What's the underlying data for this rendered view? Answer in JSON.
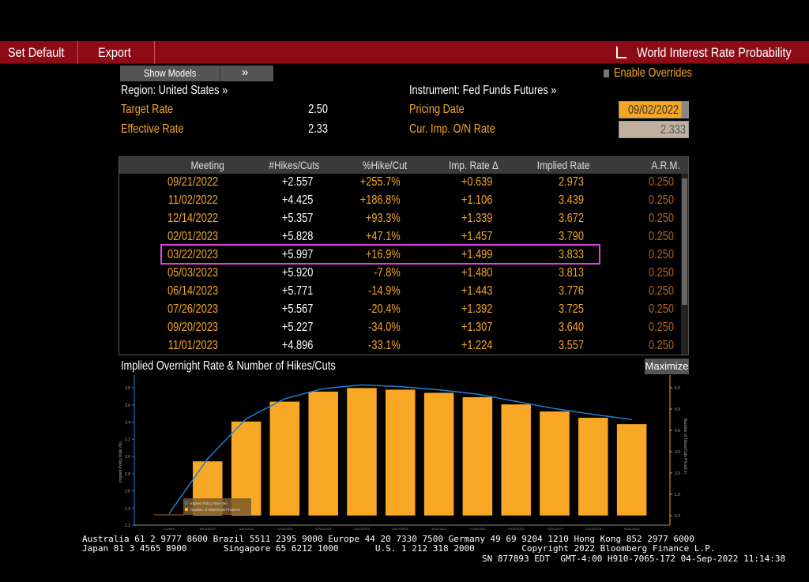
{
  "toolbar": {
    "set_default": "Set Default",
    "export": "Export",
    "title": "World Interest Rate Probability",
    "title_icon": "external-link-icon"
  },
  "controls": {
    "show_models": "Show Models",
    "expand": "»",
    "enable_overrides": "Enable Overrides",
    "region": "Region: United States »",
    "instrument": "Instrument: Fed Funds Futures »",
    "target_rate_label": "Target Rate",
    "target_rate": "2.50",
    "effective_rate_label": "Effective Rate",
    "effective_rate": "2.33",
    "pricing_date_label": "Pricing Date",
    "pricing_date": "09/02/2022",
    "cur_imp_label": "Cur. Imp. O/N Rate",
    "cur_imp": "2.333"
  },
  "table": {
    "headers": [
      "Meeting",
      "#Hikes/Cuts",
      "%Hike/Cut",
      "Imp. Rate Δ",
      "Implied Rate",
      "A.R.M."
    ],
    "rows": [
      [
        "09/21/2022",
        "+2.557",
        "+255.7%",
        "+0.639",
        "2.973",
        "0.250"
      ],
      [
        "11/02/2022",
        "+4.425",
        "+186.8%",
        "+1.106",
        "3.439",
        "0.250"
      ],
      [
        "12/14/2022",
        "+5.357",
        "+93.3%",
        "+1.339",
        "3.672",
        "0.250"
      ],
      [
        "02/01/2023",
        "+5.828",
        "+47.1%",
        "+1.457",
        "3.790",
        "0.250"
      ],
      [
        "03/22/2023",
        "+5.997",
        "+16.9%",
        "+1.499",
        "3.833",
        "0.250"
      ],
      [
        "05/03/2023",
        "+5.920",
        "-7.8%",
        "+1.480",
        "3.813",
        "0.250"
      ],
      [
        "06/14/2023",
        "+5.771",
        "-14.9%",
        "+1.443",
        "3.776",
        "0.250"
      ],
      [
        "07/26/2023",
        "+5.567",
        "-20.4%",
        "+1.392",
        "3.725",
        "0.250"
      ],
      [
        "09/20/2023",
        "+5.227",
        "-34.0%",
        "+1.307",
        "3.640",
        "0.250"
      ],
      [
        "11/01/2023",
        "+4.896",
        "-33.1%",
        "+1.224",
        "3.557",
        "0.250"
      ]
    ],
    "highlight_row": 4,
    "highlight_color": "#e040e0"
  },
  "chart": {
    "title": "Implied Overnight Rate & Number of Hikes/Cuts",
    "maximize": "Maximize"
  },
  "chart_data": {
    "type": "bar+line",
    "categories": [
      "Current",
      "09/21/2022",
      "11/02/2022",
      "12/14/2022",
      "02/01/2023",
      "03/22/2023",
      "05/03/2023",
      "06/14/2023",
      "07/26/2023",
      "09/20/2023",
      "11/01/2023",
      "12/13/2023",
      "01/31/2024"
    ],
    "series": [
      {
        "name": "Implied Policy Rate (%)",
        "type": "line",
        "axis": "left",
        "color": "#1e7fd6",
        "values": [
          2.333,
          2.973,
          3.439,
          3.672,
          3.79,
          3.833,
          3.813,
          3.776,
          3.725,
          3.64,
          3.557,
          3.49,
          3.43
        ]
      },
      {
        "name": "Number of Hikes/Cuts Priced In",
        "type": "bar",
        "axis": "right",
        "color": "#f9a825",
        "values": [
          0,
          2.557,
          4.425,
          5.357,
          5.828,
          5.997,
          5.92,
          5.771,
          5.567,
          5.227,
          4.896,
          4.6,
          4.3
        ]
      }
    ],
    "ylabel": "Implied Policy Rate (%)",
    "y2label": "Number of Hikes/Cuts Priced In",
    "ylim": [
      2.2,
      3.8
    ],
    "yticks": [
      "2.2",
      "2.4",
      "2.6",
      "2.8",
      "3.0",
      "3.2",
      "3.4",
      "3.6",
      "3.8"
    ],
    "y2lim": [
      0,
      6
    ],
    "y2ticks": [
      "0.0",
      "1.0",
      "2.0",
      "3.0",
      "4.0",
      "5.0",
      "6.0"
    ],
    "legend": "bottom-left"
  },
  "footer": {
    "line1": "Australia 61 2 9777 8600 Brazil 5511 2395 9000 Europe 44 20 7330 7500 Germany 49 69 9204 1210 Hong Kong 852 2977 6000",
    "line2": "Japan 81 3 4565 8900       Singapore 65 6212 1000       U.S. 1 212 318 2000         Copyright 2022 Bloomberg Finance L.P.",
    "line3": "SN 877893 EDT  GMT-4:00 H910-7065-172 04-Sep-2022 11:14:38"
  }
}
